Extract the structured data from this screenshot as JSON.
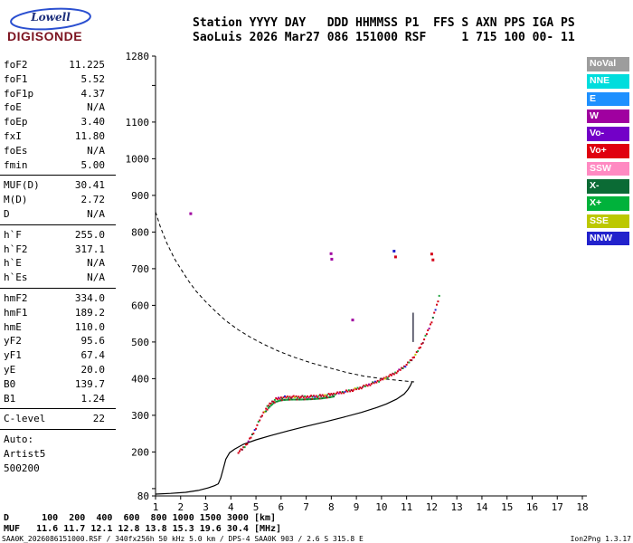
{
  "logo": {
    "top": "Lowell",
    "bottom": "DIGISONDE"
  },
  "header": {
    "line1": "Station YYYY DAY   DDD HHMMSS P1  FFS S AXN PPS IGA PS",
    "line2": "SaoLuis 2026 Mar27 086 151000 RSF     1 715 100 00- 11"
  },
  "params": {
    "groups": [
      {
        "rows": [
          {
            "label": "foF2",
            "value": "11.225"
          },
          {
            "label": "foF1",
            "value": "5.52"
          },
          {
            "label": "foF1p",
            "value": "4.37"
          },
          {
            "label": "foE",
            "value": "N/A"
          },
          {
            "label": "foEp",
            "value": "3.40"
          },
          {
            "label": "fxI",
            "value": "11.80"
          },
          {
            "label": "foEs",
            "value": "N/A"
          },
          {
            "label": "fmin",
            "value": "5.00"
          }
        ]
      },
      {
        "rows": [
          {
            "label": "MUF(D)",
            "value": "30.41"
          },
          {
            "label": "M(D)",
            "value": "2.72"
          },
          {
            "label": "D",
            "value": "N/A"
          }
        ]
      },
      {
        "rows": [
          {
            "label": "h`F",
            "value": "255.0"
          },
          {
            "label": "h`F2",
            "value": "317.1"
          },
          {
            "label": "h`E",
            "value": "N/A"
          },
          {
            "label": "h`Es",
            "value": "N/A"
          }
        ]
      },
      {
        "rows": [
          {
            "label": "hmF2",
            "value": "334.0"
          },
          {
            "label": "hmF1",
            "value": "189.2"
          },
          {
            "label": "hmE",
            "value": "110.0"
          },
          {
            "label": "yF2",
            "value": "95.6"
          },
          {
            "label": "yF1",
            "value": "67.4"
          },
          {
            "label": "yE",
            "value": "20.0"
          },
          {
            "label": "B0",
            "value": "139.7"
          },
          {
            "label": "B1",
            "value": "1.24"
          }
        ]
      },
      {
        "rows": [
          {
            "label": "C-level",
            "value": "22"
          }
        ]
      },
      {
        "rows": [
          {
            "label": "Auto:",
            "value": ""
          },
          {
            "label": "Artist5",
            "value": ""
          },
          {
            "label": "500200",
            "value": ""
          }
        ]
      }
    ]
  },
  "legend": {
    "items": [
      {
        "label": "NoVal",
        "color": "#9d9d9d"
      },
      {
        "label": "NNE",
        "color": "#00dddd"
      },
      {
        "label": "E",
        "color": "#1e90ff"
      },
      {
        "label": "W",
        "color": "#a000a0"
      },
      {
        "label": "Vo-",
        "color": "#7300c8"
      },
      {
        "label": "Vo+",
        "color": "#e00010"
      },
      {
        "label": "SSW",
        "color": "#ff8ac2"
      },
      {
        "label": "X-",
        "color": "#0b6b35"
      },
      {
        "label": "X+",
        "color": "#00b23b"
      },
      {
        "label": "SSE",
        "color": "#bcc800"
      },
      {
        "label": "NNW",
        "color": "#2222cc"
      }
    ]
  },
  "chart_data": {
    "type": "scatter",
    "title": "Digisonde ionogram SaoLuis 2026-03-27 15:10:00",
    "x_unit": "MHz",
    "y_unit": "km",
    "xlim": [
      1,
      18
    ],
    "ylim": [
      80,
      1280
    ],
    "x_ticks": [
      1,
      2,
      3,
      4,
      5,
      6,
      7,
      8,
      9,
      10,
      11,
      12,
      13,
      14,
      15,
      16,
      17,
      18
    ],
    "y_tick_labels": [
      1280,
      1100,
      1000,
      900,
      800,
      700,
      600,
      500,
      400,
      300,
      200,
      80
    ],
    "grid": false,
    "legend_position": "right",
    "palette": {
      "r": "#d40018",
      "dr": "#8f1030",
      "g": "#1fa33c",
      "dg": "#0b6b35",
      "b": "#2222cc",
      "m": "#a000a0",
      "y": "#bcc800",
      "c": "#00dddd"
    },
    "echo_trace": {
      "f_start": 4.3,
      "f_end": 12.32,
      "step": 0.05,
      "control_points": [
        [
          4.3,
          200
        ],
        [
          4.45,
          207
        ],
        [
          4.6,
          219
        ],
        [
          4.75,
          234
        ],
        [
          4.9,
          252
        ],
        [
          5.0,
          266
        ],
        [
          5.1,
          280
        ],
        [
          5.2,
          294
        ],
        [
          5.3,
          307
        ],
        [
          5.4,
          318
        ],
        [
          5.5,
          327
        ],
        [
          5.6,
          334
        ],
        [
          5.7,
          340
        ],
        [
          5.8,
          344
        ],
        [
          5.95,
          347
        ],
        [
          6.1,
          349
        ],
        [
          6.4,
          350
        ],
        [
          6.8,
          350
        ],
        [
          7.2,
          351
        ],
        [
          7.6,
          353
        ],
        [
          8.0,
          357
        ],
        [
          8.4,
          362
        ],
        [
          8.8,
          368
        ],
        [
          9.2,
          376
        ],
        [
          9.6,
          386
        ],
        [
          10.0,
          397
        ],
        [
          10.4,
          410
        ],
        [
          10.7,
          422
        ],
        [
          11.0,
          438
        ],
        [
          11.2,
          452
        ],
        [
          11.4,
          470
        ],
        [
          11.55,
          487
        ],
        [
          11.7,
          507
        ],
        [
          11.85,
          530
        ],
        [
          12.0,
          556
        ],
        [
          12.1,
          577
        ],
        [
          12.2,
          600
        ],
        [
          12.32,
          630
        ]
      ]
    },
    "dot_color_cycle": [
      "r",
      "r",
      "r",
      "dr",
      "r",
      "g",
      "r",
      "r",
      "m",
      "r",
      "r",
      "dg",
      "r",
      "b",
      "r",
      "r",
      "g",
      "r",
      "dr",
      "r",
      "r",
      "y",
      "r",
      "g"
    ],
    "secondary_trace_band": {
      "f_start": 5.35,
      "f_end": 8.1,
      "offset_km": -7
    },
    "band_color_cycle": [
      "g",
      "dg",
      "g",
      "g",
      "dg",
      "r"
    ],
    "profile_true_height_line": [
      [
        1.0,
        85
      ],
      [
        1.6,
        87
      ],
      [
        2.2,
        90
      ],
      [
        2.7,
        95
      ],
      [
        3.1,
        102
      ],
      [
        3.35,
        108
      ],
      [
        3.5,
        113
      ],
      [
        3.6,
        130
      ],
      [
        3.7,
        155
      ],
      [
        3.8,
        180
      ],
      [
        3.95,
        198
      ],
      [
        4.15,
        208
      ],
      [
        4.5,
        221
      ],
      [
        5.0,
        233
      ],
      [
        5.6,
        245
      ],
      [
        6.3,
        258
      ],
      [
        7.0,
        270
      ],
      [
        7.8,
        283
      ],
      [
        8.5,
        295
      ],
      [
        9.2,
        308
      ],
      [
        9.8,
        321
      ],
      [
        10.2,
        331
      ],
      [
        10.6,
        344
      ],
      [
        10.9,
        358
      ],
      [
        11.05,
        370
      ],
      [
        11.15,
        381
      ],
      [
        11.22,
        392
      ]
    ],
    "topside_dashed_line": [
      [
        1.0,
        855
      ],
      [
        1.2,
        812
      ],
      [
        1.45,
        770
      ],
      [
        1.75,
        728
      ],
      [
        2.0,
        700
      ],
      [
        2.3,
        668
      ],
      [
        2.6,
        640
      ],
      [
        3.0,
        610
      ],
      [
        3.4,
        583
      ],
      [
        3.8,
        558
      ],
      [
        4.3,
        533
      ],
      [
        4.8,
        512
      ],
      [
        5.3,
        494
      ],
      [
        5.9,
        475
      ],
      [
        6.5,
        459
      ],
      [
        7.2,
        443
      ],
      [
        7.9,
        430
      ],
      [
        8.6,
        417
      ],
      [
        9.3,
        407
      ],
      [
        10.0,
        400
      ],
      [
        10.7,
        395
      ],
      [
        11.3,
        391
      ]
    ],
    "extra_points": [
      [
        2.4,
        850,
        "m"
      ],
      [
        7.99,
        741,
        "m"
      ],
      [
        8.02,
        726,
        "m"
      ],
      [
        8.85,
        560,
        "m"
      ],
      [
        10.5,
        748,
        "b"
      ],
      [
        10.56,
        732,
        "r"
      ],
      [
        12.0,
        740,
        "r"
      ],
      [
        12.05,
        724,
        "r"
      ]
    ],
    "spread_streak": {
      "f": 11.26,
      "h_from": 500,
      "h_to": 580,
      "color": "#3c3c50"
    }
  },
  "muf_table": {
    "row1": "D      100  200  400  600  800 1000 1500 3000 [km]",
    "row2": "MUF   11.6 11.7 12.1 12.8 13.8 15.3 19.6 30.4 [MHz]"
  },
  "footer": {
    "left": "SAA0K_2026086151000.RSF / 340fx256h 50 kHz 5.0 km / DPS-4 SAA0K 903 / 2.6 S 315.8 E",
    "right": "Ion2Png 1.3.17"
  }
}
